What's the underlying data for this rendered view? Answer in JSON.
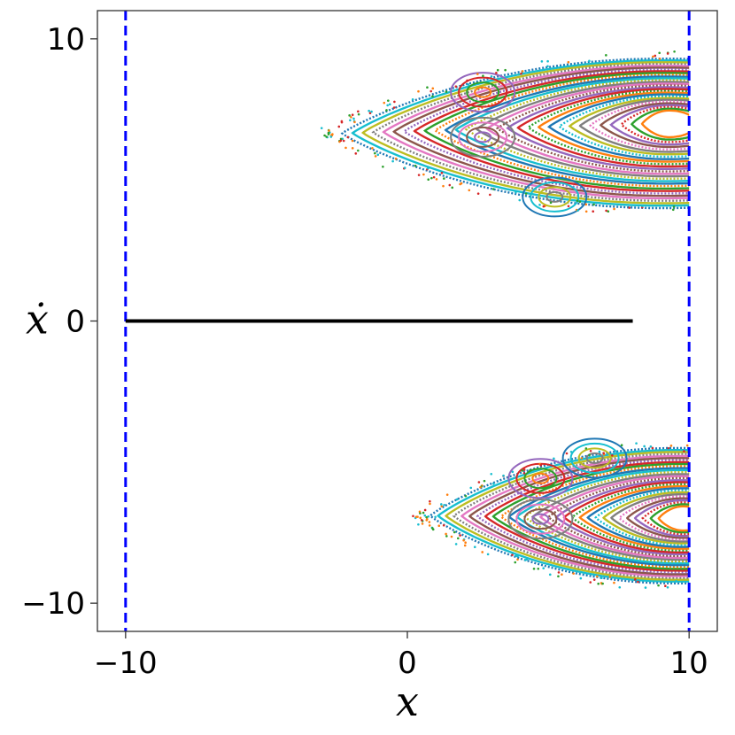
{
  "chart_data": {
    "type": "scatter",
    "xlabel": "x",
    "ylabel": "ẋ",
    "xlim": [
      -11,
      11
    ],
    "ylim": [
      -11,
      11
    ],
    "x_ticks": [
      -10,
      0,
      10
    ],
    "y_ticks": [
      -10,
      0,
      10
    ],
    "x_tick_labels": [
      "−10",
      "0",
      "10"
    ],
    "y_tick_labels": [
      "−10",
      "0",
      "10"
    ],
    "grid": false,
    "legend": "none",
    "reference_lines": {
      "vertical_dashed_x": [
        -10,
        10
      ],
      "vertical_color": "#0000ff",
      "horizontal_segment": {
        "x": [
          -10,
          8
        ],
        "y": 0,
        "color": "#000000"
      }
    },
    "series": [
      {
        "island_center": [
          9.0,
          7.0
        ],
        "tip": [
          -1.2,
          6.0
        ],
        "y_top": 9.3,
        "y_bottom": 4.0,
        "x_edge": 10
      },
      {
        "island_center": [
          9.5,
          -7.0
        ],
        "tip": [
          1.8,
          -6.6
        ],
        "y_top": -4.5,
        "y_bottom": -9.3,
        "x_edge": 10
      }
    ],
    "palette": [
      "#1f77b4",
      "#ff7f0e",
      "#2ca02c",
      "#d62728",
      "#9467bd",
      "#8c564b",
      "#e377c2",
      "#7f7f7f",
      "#bcbd22",
      "#17becf"
    ]
  }
}
